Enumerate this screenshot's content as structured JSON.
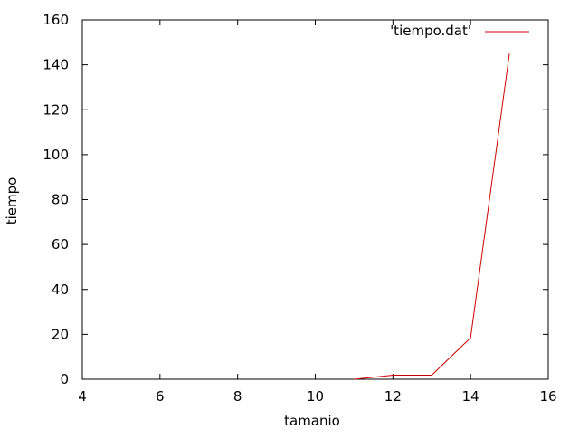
{
  "chart_data": {
    "type": "line",
    "title": "",
    "xlabel": "tamanio",
    "ylabel": "tiempo",
    "xlim": [
      4,
      16
    ],
    "ylim": [
      0,
      160
    ],
    "x_ticks": [
      4,
      6,
      8,
      10,
      12,
      14,
      16
    ],
    "y_ticks": [
      0,
      20,
      40,
      60,
      80,
      100,
      120,
      140,
      160
    ],
    "grid": false,
    "legend_position": "top-right",
    "series": [
      {
        "name": "'tiempo.dat'",
        "color": "#cc0000",
        "x": [
          11,
          12,
          13,
          14,
          15
        ],
        "y": [
          0,
          1.8,
          1.8,
          18.5,
          145
        ]
      }
    ]
  }
}
